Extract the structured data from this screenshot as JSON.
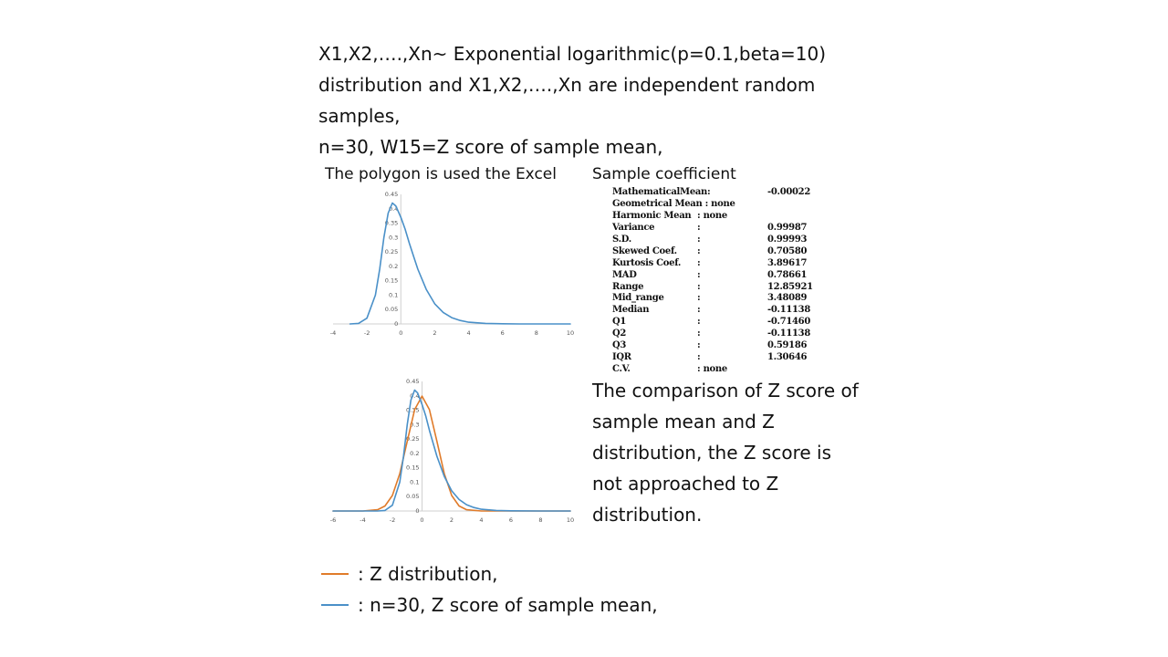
{
  "intro": [
    "X1,X2,….,Xn~ Exponential logarithmic(p=0.1,beta=10)",
    "distribution and X1,X2,….,Xn are independent random",
    "samples,",
    "n=30, W15=Z score of sample mean,"
  ],
  "chart1_caption": "The polygon is used the Excel",
  "stats_title": "Sample coefficient",
  "stats": [
    {
      "label": "MathematicalMean:",
      "sep": "",
      "value": "-0.00022"
    },
    {
      "label": "Geometrical Mean : none",
      "sep": "",
      "value": ""
    },
    {
      "label": "Harmonic Mean",
      "sep": ": none",
      "value": ""
    },
    {
      "label": "Variance",
      "sep": ":",
      "value": "0.99987"
    },
    {
      "label": "S.D.",
      "sep": ":",
      "value": "0.99993"
    },
    {
      "label": "Skewed Coef.",
      "sep": ":",
      "value": "0.70580"
    },
    {
      "label": "Kurtosis Coef.",
      "sep": ":",
      "value": "3.89617"
    },
    {
      "label": "MAD",
      "sep": ":",
      "value": "0.78661"
    },
    {
      "label": "Range",
      "sep": ":",
      "value": "12.85921"
    },
    {
      "label": "Mid_range",
      "sep": ":",
      "value": "3.48089"
    },
    {
      "label": "Median",
      "sep": ":",
      "value": "-0.11138"
    },
    {
      "label": "Q1",
      "sep": ":",
      "value": "-0.71460"
    },
    {
      "label": "Q2",
      "sep": ":",
      "value": "-0.11138"
    },
    {
      "label": "Q3",
      "sep": ":",
      "value": "0.59186"
    },
    {
      "label": "IQR",
      "sep": ":",
      "value": "1.30646"
    },
    {
      "label": "C.V.",
      "sep": ": none",
      "value": ""
    }
  ],
  "compare": [
    "The comparison of Z score of",
    "sample mean and Z",
    "distribution, the Z score is",
    "not approached to Z",
    "distribution."
  ],
  "legend": [
    {
      "text": ": Z distribution,",
      "color": "#E07B2A"
    },
    {
      "text": ":   n=30, Z score of sample mean,",
      "color": "#4A90C8"
    }
  ],
  "chart_data": [
    {
      "type": "line",
      "title": "",
      "xlim": [
        -4,
        10
      ],
      "ylim": [
        0,
        0.45
      ],
      "x_ticks": [
        "-4",
        "-2",
        "0",
        "2",
        "4",
        "6",
        "8",
        "10"
      ],
      "y_ticks": [
        "0",
        "0.05",
        "0.1",
        "0.15",
        "0.2",
        "0.25",
        "0.3",
        "0.35",
        "0.4",
        "0.45"
      ],
      "series": [
        {
          "color": "#4A90C8",
          "x": [
            -3,
            -2.5,
            -2,
            -1.5,
            -1.25,
            -1,
            -0.75,
            -0.5,
            -0.3,
            0,
            0.25,
            0.5,
            0.75,
            1,
            1.5,
            2,
            2.5,
            3,
            3.5,
            4,
            5,
            6,
            7,
            8,
            10
          ],
          "y": [
            0,
            0.002,
            0.02,
            0.1,
            0.19,
            0.3,
            0.385,
            0.42,
            0.41,
            0.37,
            0.33,
            0.28,
            0.235,
            0.19,
            0.12,
            0.07,
            0.04,
            0.022,
            0.012,
            0.006,
            0.002,
            0.0005,
            0,
            0,
            0
          ]
        }
      ]
    },
    {
      "type": "line",
      "title": "",
      "xlim": [
        -6,
        10
      ],
      "ylim": [
        0,
        0.45
      ],
      "x_ticks": [
        "-6",
        "-4",
        "-2",
        "0",
        "2",
        "4",
        "6",
        "8",
        "10"
      ],
      "y_ticks": [
        "0",
        "0.05",
        "0.1",
        "0.15",
        "0.2",
        "0.25",
        "0.3",
        "0.35",
        "0.4",
        "0.45"
      ],
      "series": [
        {
          "name": "Z distribution",
          "color": "#E07B2A",
          "x": [
            -6,
            -4,
            -3,
            -2.5,
            -2,
            -1.5,
            -1,
            -0.5,
            0,
            0.5,
            1,
            1.5,
            2,
            2.5,
            3,
            4,
            6,
            10
          ],
          "y": [
            0,
            0.0001,
            0.0044,
            0.0175,
            0.054,
            0.1295,
            0.242,
            0.352,
            0.399,
            0.352,
            0.242,
            0.1295,
            0.054,
            0.0175,
            0.0044,
            0.0001,
            0,
            0
          ]
        },
        {
          "name": "n=30, Z score of sample mean",
          "color": "#4A90C8",
          "x": [
            -6,
            -3,
            -2.5,
            -2,
            -1.5,
            -1.25,
            -1,
            -0.75,
            -0.5,
            -0.3,
            0,
            0.25,
            0.5,
            0.75,
            1,
            1.5,
            2,
            2.5,
            3,
            3.5,
            4,
            5,
            6,
            8,
            10
          ],
          "y": [
            0,
            0,
            0.002,
            0.02,
            0.1,
            0.19,
            0.3,
            0.385,
            0.42,
            0.41,
            0.37,
            0.33,
            0.28,
            0.235,
            0.19,
            0.12,
            0.07,
            0.04,
            0.022,
            0.012,
            0.006,
            0.002,
            0.0005,
            0,
            0
          ]
        }
      ]
    }
  ]
}
